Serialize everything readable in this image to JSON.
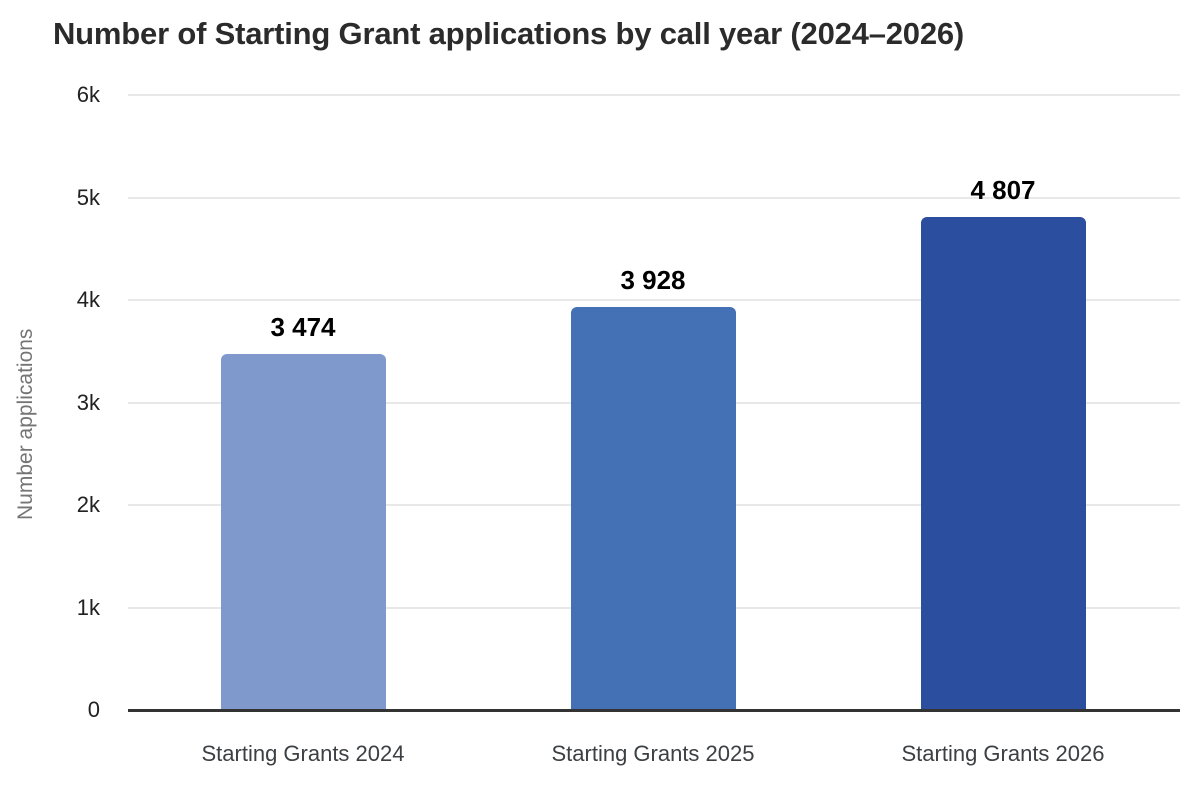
{
  "chart_data": {
    "type": "bar",
    "title": "Number of Starting Grant applications by call year (2024–2026)",
    "ylabel": "Number applications",
    "xlabel": "",
    "categories": [
      "Starting Grants 2024",
      "Starting Grants 2025",
      "Starting Grants 2026"
    ],
    "values": [
      3474,
      3928,
      4807
    ],
    "value_labels": [
      "3 474",
      "3 928",
      "4 807"
    ],
    "bar_colors": [
      "#8099CC",
      "#4470B5",
      "#2B4F9E"
    ],
    "ylim": [
      0,
      6000
    ],
    "yticks": [
      {
        "label": "0",
        "value": 0
      },
      {
        "label": "1k",
        "value": 1000
      },
      {
        "label": "2k",
        "value": 2000
      },
      {
        "label": "3k",
        "value": 3000
      },
      {
        "label": "4k",
        "value": 4000
      },
      {
        "label": "5k",
        "value": 5000
      },
      {
        "label": "6k",
        "value": 6000
      }
    ],
    "grid": "horizontal",
    "legend": "none",
    "colors": {
      "title": "#2b2b2b",
      "ylabel": "#757575",
      "tick_label": "#212121",
      "category_label": "#3c4043",
      "value_label": "#000000",
      "gridline": "#e8e8e8",
      "axis_line": "#333333",
      "background": "#ffffff"
    }
  }
}
